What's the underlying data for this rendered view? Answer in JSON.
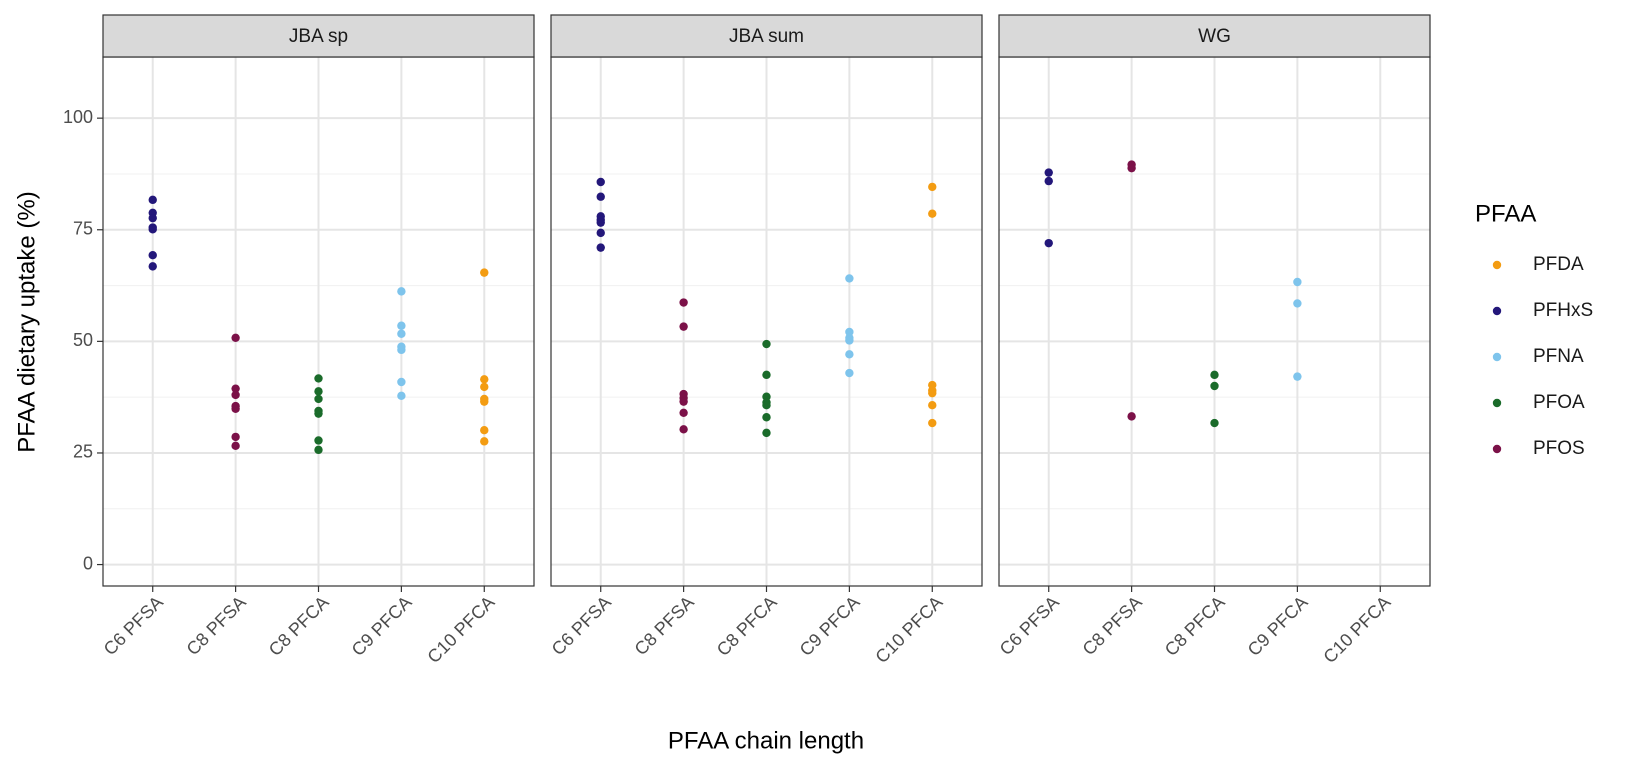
{
  "chart_data": {
    "type": "scatter",
    "ylabel": "PFAA dietary uptake (%)",
    "xlabel": "PFAA chain length",
    "legend_title": "PFAA",
    "categories": [
      "C6 PFSA",
      "C8 PFSA",
      "C8 PFCA",
      "C9 PFCA",
      "C10 PFCA"
    ],
    "ylim": [
      -4.8,
      113.7
    ],
    "yticks": [
      0,
      25,
      50,
      75,
      100
    ],
    "grid": true,
    "series": [
      {
        "name": "PFDA",
        "color": "#f39c12"
      },
      {
        "name": "PFHxS",
        "color": "#23177a"
      },
      {
        "name": "PFNA",
        "color": "#7ec4ec"
      },
      {
        "name": "PFOA",
        "color": "#1a6b2a"
      },
      {
        "name": "PFOS",
        "color": "#7b1148"
      }
    ],
    "facets": [
      {
        "title": "JBA sp",
        "series": [
          {
            "x": [
              "C10 PFCA",
              "C10 PFCA",
              "C10 PFCA",
              "C10 PFCA",
              "C10 PFCA",
              "C10 PFCA",
              "C10 PFCA"
            ],
            "values": [
              65.4,
              41.5,
              39.8,
              37.1,
              36.5,
              30.1,
              27.6
            ]
          },
          {
            "x": [
              "C6 PFSA",
              "C6 PFSA",
              "C6 PFSA",
              "C6 PFSA",
              "C6 PFSA",
              "C6 PFSA",
              "C6 PFSA"
            ],
            "values": [
              81.7,
              78.8,
              77.6,
              75.5,
              75.1,
              69.3,
              66.8
            ]
          },
          {
            "x": [
              "C9 PFCA",
              "C9 PFCA",
              "C9 PFCA",
              "C9 PFCA",
              "C9 PFCA",
              "C9 PFCA",
              "C9 PFCA"
            ],
            "values": [
              61.2,
              53.5,
              51.7,
              48.8,
              48.1,
              40.9,
              37.8
            ]
          },
          {
            "x": [
              "C8 PFCA",
              "C8 PFCA",
              "C8 PFCA",
              "C8 PFCA",
              "C8 PFCA",
              "C8 PFCA",
              "C8 PFCA"
            ],
            "values": [
              41.7,
              38.8,
              37.1,
              34.4,
              33.8,
              27.8,
              25.7
            ]
          },
          {
            "x": [
              "C8 PFSA",
              "C8 PFSA",
              "C8 PFSA",
              "C8 PFSA",
              "C8 PFSA",
              "C8 PFSA",
              "C8 PFSA"
            ],
            "values": [
              50.8,
              39.4,
              38.0,
              35.5,
              34.9,
              28.6,
              26.6
            ]
          }
        ]
      },
      {
        "title": "JBA sum",
        "series": [
          {
            "x": [
              "C10 PFCA",
              "C10 PFCA",
              "C10 PFCA",
              "C10 PFCA",
              "C10 PFCA",
              "C10 PFCA",
              "C10 PFCA"
            ],
            "values": [
              84.6,
              78.6,
              40.2,
              39.0,
              38.4,
              35.7,
              31.7
            ]
          },
          {
            "x": [
              "C6 PFSA",
              "C6 PFSA",
              "C6 PFSA",
              "C6 PFSA",
              "C6 PFSA",
              "C6 PFSA",
              "C6 PFSA"
            ],
            "values": [
              85.7,
              82.4,
              78.0,
              77.2,
              76.6,
              74.3,
              71.0
            ]
          },
          {
            "x": [
              "C9 PFCA",
              "C9 PFCA",
              "C9 PFCA",
              "C9 PFCA",
              "C9 PFCA",
              "C9 PFCA"
            ],
            "values": [
              64.1,
              52.1,
              50.8,
              50.2,
              47.1,
              42.9
            ]
          },
          {
            "x": [
              "C8 PFCA",
              "C8 PFCA",
              "C8 PFCA",
              "C8 PFCA",
              "C8 PFCA",
              "C8 PFCA",
              "C8 PFCA"
            ],
            "values": [
              49.4,
              42.5,
              37.6,
              36.3,
              35.7,
              33.0,
              29.5
            ]
          },
          {
            "x": [
              "C8 PFSA",
              "C8 PFSA",
              "C8 PFSA",
              "C8 PFSA",
              "C8 PFSA",
              "C8 PFSA",
              "C8 PFSA"
            ],
            "values": [
              58.7,
              53.3,
              38.2,
              37.3,
              36.5,
              34.0,
              30.3
            ]
          }
        ]
      },
      {
        "title": "WG",
        "series": [
          {
            "x": [],
            "values": []
          },
          {
            "x": [
              "C6 PFSA",
              "C6 PFSA",
              "C6 PFSA"
            ],
            "values": [
              87.8,
              85.9,
              72.0
            ]
          },
          {
            "x": [
              "C9 PFCA",
              "C9 PFCA",
              "C9 PFCA"
            ],
            "values": [
              63.3,
              58.5,
              42.1
            ]
          },
          {
            "x": [
              "C8 PFCA",
              "C8 PFCA",
              "C8 PFCA"
            ],
            "values": [
              42.5,
              40.0,
              31.7
            ]
          },
          {
            "x": [
              "C8 PFSA",
              "C8 PFSA",
              "C8 PFSA"
            ],
            "values": [
              89.6,
              88.8,
              33.2
            ]
          }
        ]
      }
    ]
  }
}
